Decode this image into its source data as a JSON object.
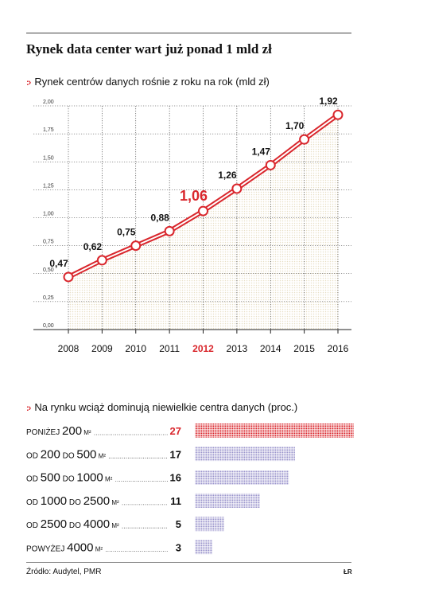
{
  "title": "Rynek data center wart już ponad 1 mld zł",
  "subtitle1": "Rynek centrów danych rośnie z roku na rok (mld zł)",
  "subtitle2": "Na rynku wciąż dominują niewielkie centra danych (proc.)",
  "bullet": ":›",
  "source": "Źródło: Audytel, PMR",
  "credit": "ŁR",
  "colors": {
    "red": "#d9262c",
    "purple": "#9a94cc",
    "grid": "#333333",
    "fill": "#e8dfc6"
  },
  "chart_data": [
    {
      "type": "line",
      "title": "Rynek centrów danych rośnie z roku na rok (mld zł)",
      "x": [
        "2008",
        "2009",
        "2010",
        "2011",
        "2012",
        "2013",
        "2014",
        "2015",
        "2016"
      ],
      "series": [
        {
          "values": [
            0.47,
            0.62,
            0.75,
            0.88,
            1.06,
            1.26,
            1.47,
            1.7,
            1.92
          ]
        }
      ],
      "labels": [
        "0,47",
        "0,62",
        "0,75",
        "0,88",
        "1,06",
        "1,26",
        "1,47",
        "1,70",
        "1,92"
      ],
      "highlight": "2012",
      "ylim": [
        0,
        2
      ],
      "yticks": [
        "0,00",
        "0,25",
        "0,50",
        "0,75",
        "1,00",
        "1,25",
        "1,50",
        "1,75",
        "2,00"
      ],
      "grid": true
    },
    {
      "type": "bar",
      "title": "Na rynku wciąż dominują niewielkie centra danych (proc.)",
      "categories": [
        {
          "pre": "PONIŻEJ",
          "a": "200",
          "mid": "",
          "b": "",
          "unit": "M²"
        },
        {
          "pre": "OD",
          "a": "200",
          "mid": "DO",
          "b": "500",
          "unit": "M²"
        },
        {
          "pre": "OD",
          "a": "500",
          "mid": "DO",
          "b": "1000",
          "unit": "M²"
        },
        {
          "pre": "OD",
          "a": "1000",
          "mid": "DO",
          "b": "2500",
          "unit": "M²"
        },
        {
          "pre": "OD",
          "a": "2500",
          "mid": "DO",
          "b": "4000",
          "unit": "M²"
        },
        {
          "pre": "POWYŻEJ",
          "a": "4000",
          "mid": "",
          "b": "",
          "unit": "M²"
        }
      ],
      "values": [
        27,
        17,
        16,
        11,
        5,
        3
      ],
      "value_labels": [
        "27",
        "17",
        "16",
        "11",
        "5",
        "3"
      ],
      "highlight_index": 0
    }
  ]
}
